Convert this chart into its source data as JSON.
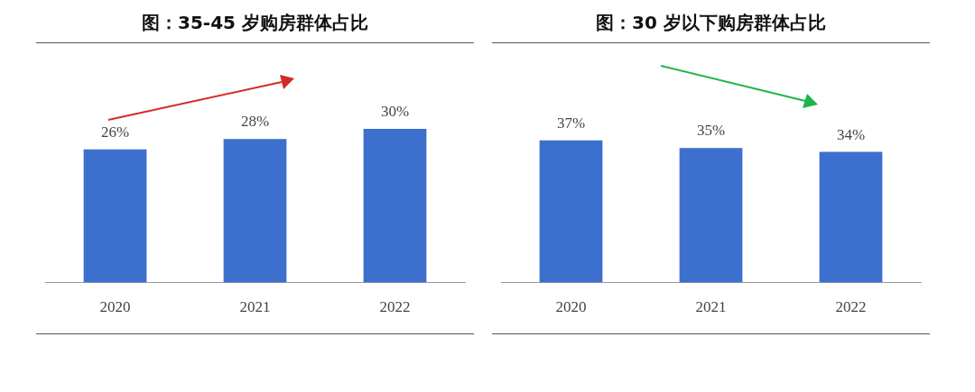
{
  "chart_data": [
    {
      "type": "bar",
      "title": "图：35-45 岁购房群体占比",
      "categories": [
        "2020",
        "2021",
        "2022"
      ],
      "values": [
        26,
        28,
        30
      ],
      "value_labels": [
        "26%",
        "28%",
        "30%"
      ],
      "color": "#3d6fce"
    },
    {
      "type": "bar",
      "title": "图：30 岁以下购房群体占比",
      "categories": [
        "2020",
        "2021",
        "2022"
      ],
      "values": [
        37,
        35,
        34
      ],
      "value_labels": [
        "37%",
        "35%",
        "34%"
      ],
      "color": "#3d6fce"
    }
  ]
}
